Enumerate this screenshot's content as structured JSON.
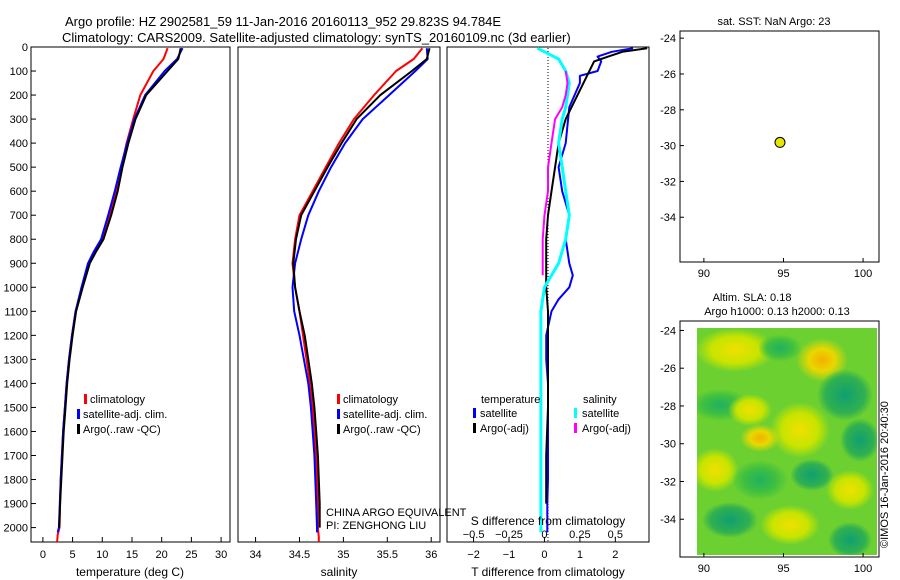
{
  "header": {
    "title_line1": "Argo profile: HZ 2902581_59 11-Jan-2016 20160113_952 29.823S 94.784E",
    "title_line2": "Climatology: CARS2009. Satellite-adjusted climatology: synTS_20160109.nc (3d earlier)"
  },
  "colors": {
    "climatology": "#ff0000",
    "satellite": "#0000ff",
    "argo": "#000000",
    "satellite_salinity": "#00ffff",
    "argo_salinity_adj": "#ff00ff"
  },
  "chart_data": [
    {
      "id": "temp",
      "type": "line",
      "xlabel": "temperature (deg C)",
      "ylabel": "",
      "xlim": [
        -2,
        31.5
      ],
      "ylim": [
        2060,
        0
      ],
      "xticks": [
        0,
        5,
        10,
        15,
        20,
        25,
        30
      ],
      "yticks": [
        0,
        100,
        200,
        300,
        400,
        500,
        600,
        700,
        800,
        900,
        1000,
        1100,
        1200,
        1300,
        1400,
        1500,
        1600,
        1700,
        1800,
        1900,
        2000
      ],
      "legend": [
        "climatology",
        "satellite-adj. clim.",
        "Argo(..raw -QC)"
      ],
      "legend_position": "lower-middle",
      "series": [
        {
          "name": "climatology",
          "color": "#ff0000",
          "x": [
            21.0,
            20.3,
            18.6,
            16.4,
            15.2,
            14.1,
            13.2,
            12.4,
            11.2,
            10.0,
            8.8,
            7.7,
            6.6,
            5.5,
            4.9,
            4.4,
            4.0,
            3.7,
            3.4,
            3.2,
            3.0,
            2.9,
            2.8,
            2.7,
            2.6,
            2.5,
            2.45,
            2.4
          ],
          "y": [
            5,
            50,
            100,
            200,
            300,
            400,
            500,
            600,
            700,
            800,
            850,
            900,
            1000,
            1100,
            1200,
            1300,
            1400,
            1500,
            1600,
            1700,
            1800,
            1900,
            2000,
            2010,
            2020,
            2030,
            2045,
            2060
          ]
        },
        {
          "name": "satellite-adj. clim.",
          "color": "#0000ff",
          "x": [
            23.5,
            22.6,
            20.5,
            17.2,
            15.4,
            14.2,
            13.1,
            12.1,
            11.0,
            9.8,
            8.6,
            7.6,
            6.5,
            5.5,
            4.9,
            4.4,
            4.0,
            3.7,
            3.4,
            3.2,
            3.0,
            2.85,
            2.7,
            2.6,
            2.5
          ],
          "y": [
            5,
            50,
            100,
            200,
            300,
            400,
            500,
            600,
            700,
            800,
            850,
            900,
            1000,
            1100,
            1200,
            1300,
            1400,
            1500,
            1600,
            1700,
            1800,
            1900,
            2000,
            2010,
            2020
          ]
        },
        {
          "name": "Argo(..raw -QC)",
          "color": "#000000",
          "x": [
            23.2,
            22.8,
            21.0,
            17.4,
            15.6,
            14.4,
            13.4,
            12.6,
            11.5,
            10.2,
            9.0,
            7.9,
            6.7,
            5.6,
            5.0,
            4.5,
            4.1,
            3.8,
            3.5,
            3.3,
            3.1,
            2.9,
            2.75
          ],
          "y": [
            5,
            50,
            100,
            200,
            300,
            400,
            500,
            600,
            700,
            800,
            850,
            900,
            1000,
            1100,
            1200,
            1300,
            1400,
            1500,
            1600,
            1700,
            1800,
            1900,
            2000
          ]
        }
      ]
    },
    {
      "id": "sal",
      "type": "line",
      "xlabel": "salinity",
      "ylabel": "",
      "xlim": [
        33.8,
        36.1
      ],
      "ylim": [
        2060,
        0
      ],
      "xticks": [
        34,
        34.5,
        35,
        35.5,
        36
      ],
      "xtick_labels": [
        "34",
        "34.5",
        "35",
        "35.5",
        "36"
      ],
      "legend": [
        "climatology",
        "satellite-adj. clim.",
        "Argo(..raw -QC)"
      ],
      "legend_position": "lower-middle",
      "annotation": [
        "CHINA ARGO EQUIVALENT",
        "PI: ZENGHONG LIU"
      ],
      "series": [
        {
          "name": "climatology",
          "color": "#ff0000",
          "x": [
            35.9,
            35.8,
            35.6,
            35.35,
            35.12,
            34.95,
            34.8,
            34.65,
            34.5,
            34.45,
            34.42,
            34.45,
            34.5,
            34.54,
            34.58,
            34.62,
            34.65,
            34.67,
            34.69,
            34.7,
            34.71,
            34.71,
            34.72,
            34.72
          ],
          "y": [
            5,
            50,
            100,
            200,
            300,
            400,
            500,
            600,
            700,
            800,
            900,
            1000,
            1100,
            1200,
            1300,
            1400,
            1500,
            1600,
            1700,
            1800,
            1900,
            2000,
            2040,
            2060
          ]
        },
        {
          "name": "satellite-adj. clim.",
          "color": "#0000ff",
          "x": [
            35.95,
            35.96,
            35.82,
            35.52,
            35.22,
            35.02,
            34.86,
            34.72,
            34.6,
            34.52,
            34.45,
            34.42,
            34.44,
            34.5,
            34.55,
            34.6,
            34.63,
            34.65,
            34.67,
            34.68,
            34.69,
            34.7,
            34.7
          ],
          "y": [
            5,
            50,
            100,
            200,
            300,
            400,
            500,
            600,
            700,
            800,
            900,
            1000,
            1100,
            1200,
            1300,
            1400,
            1500,
            1600,
            1700,
            1800,
            1900,
            2000,
            2020
          ]
        },
        {
          "name": "Argo(..raw -QC)",
          "color": "#000000",
          "x": [
            35.98,
            35.95,
            35.78,
            35.42,
            35.15,
            34.98,
            34.82,
            34.67,
            34.52,
            34.46,
            34.43,
            34.45,
            34.5,
            34.56,
            34.6,
            34.64,
            34.67,
            34.69,
            34.71,
            34.72,
            34.73,
            34.73
          ],
          "y": [
            5,
            50,
            100,
            200,
            300,
            400,
            500,
            600,
            700,
            800,
            900,
            1000,
            1100,
            1200,
            1300,
            1400,
            1500,
            1600,
            1700,
            1800,
            1900,
            2000
          ]
        }
      ]
    },
    {
      "id": "diff",
      "type": "line",
      "xlabel": "T difference from climatology",
      "xlabel_top": "S difference from climatology",
      "xlim": [
        -2.75,
        2.95
      ],
      "ylim": [
        2060,
        0
      ],
      "xticks": [
        -2,
        -1,
        0,
        1,
        2
      ],
      "xtick_labels": [
        "−2",
        "−1",
        "0",
        "1",
        "2"
      ],
      "top_xticks": [
        -0.5,
        -0.25,
        0,
        0.25,
        0.5
      ],
      "top_xtick_labels": [
        "−0.5",
        "−0.25",
        "0",
        "0.25",
        "0.5"
      ],
      "legend_headers": [
        "temperature",
        "salinity"
      ],
      "legend": [
        "satellite",
        "Argo(-adj)",
        "satellite",
        "Argo(-adj)"
      ],
      "series": [
        {
          "name": "satellite",
          "color": "#0000ff",
          "x": [
            2.5,
            1.9,
            1.5,
            1.6,
            1.5,
            1.0,
            1.0,
            0.7,
            0.6,
            0.4,
            0.5,
            0.7,
            0.6,
            0.7,
            0.8,
            0.7,
            0.4,
            0.2,
            0.05,
            0.05,
            0.1,
            0.1,
            0.1,
            0.1,
            0.1,
            0.08,
            0.08,
            0.08,
            0.08
          ],
          "y": [
            5,
            20,
            40,
            60,
            100,
            120,
            150,
            250,
            400,
            500,
            600,
            700,
            800,
            900,
            950,
            1000,
            1050,
            1100,
            1200,
            1300,
            1400,
            1500,
            1600,
            1700,
            1800,
            1900,
            1950,
            2000,
            2020
          ]
        },
        {
          "name": "Argo(-adj)",
          "color": "#000000",
          "x": [
            2.9,
            2.2,
            1.8,
            1.4,
            0.6,
            0.4,
            0.3,
            0.2,
            0.1,
            0.05,
            0.05,
            0.05,
            0.1,
            0.1,
            0.1,
            0.1,
            0.1,
            0.05,
            0.05
          ],
          "y": [
            5,
            20,
            40,
            60,
            300,
            400,
            500,
            600,
            700,
            800,
            900,
            1000,
            1100,
            1200,
            1300,
            1400,
            1500,
            1700,
            1900
          ]
        },
        {
          "name": "satellite",
          "color": "#00ffff",
          "x": [
            -0.2,
            0.4,
            0.6,
            0.7,
            0.6,
            0.5,
            0.4,
            0.5,
            0.6,
            0.7,
            0.6,
            0.4,
            0.2,
            0.0,
            -0.1,
            -0.1,
            -0.1,
            -0.1,
            -0.1,
            -0.1,
            -0.1,
            -0.1,
            -0.1,
            -0.1,
            -0.1,
            -0.1
          ],
          "y": [
            5,
            50,
            100,
            150,
            250,
            300,
            400,
            500,
            600,
            700,
            800,
            900,
            950,
            1000,
            1100,
            1200,
            1300,
            1400,
            1500,
            1600,
            1700,
            1800,
            1900,
            1950,
            2000,
            2020
          ]
        },
        {
          "name": "Argo(-adj)",
          "color": "#ff00ff",
          "x": [
            0.6,
            0.65,
            0.6,
            0.5,
            0.3,
            0.2,
            0.1,
            0.1,
            0.0,
            -0.05,
            -0.05,
            -0.05
          ],
          "y": [
            100,
            150,
            200,
            250,
            300,
            400,
            500,
            600,
            700,
            800,
            900,
            950
          ]
        }
      ]
    },
    {
      "id": "map_sst",
      "type": "scatter",
      "title": "sat. SST: NaN Argo: 23",
      "xlim": [
        88.5,
        101
      ],
      "ylim": [
        -36.5,
        -23.6
      ],
      "xticks": [
        90,
        95,
        100
      ],
      "yticks": [
        -24,
        -26,
        -28,
        -30,
        -32,
        -34
      ],
      "points": [
        {
          "x": 94.78,
          "y": -29.82
        }
      ]
    },
    {
      "id": "map_sla",
      "type": "heatmap",
      "title_line1": "Altim. SLA: 0.18",
      "title_line2": "Argo h1000: 0.13 h2000: 0.13",
      "xlim": [
        88.5,
        101
      ],
      "ylim": [
        -36,
        -23.5
      ],
      "xticks": [
        90,
        95,
        100
      ],
      "yticks": [
        -24,
        -26,
        -28,
        -30,
        -32,
        -34
      ],
      "colormap": "green-yellow-orange"
    }
  ],
  "footer": {
    "credit": "©IMOS 16-Jan-2016 20:40:30"
  }
}
